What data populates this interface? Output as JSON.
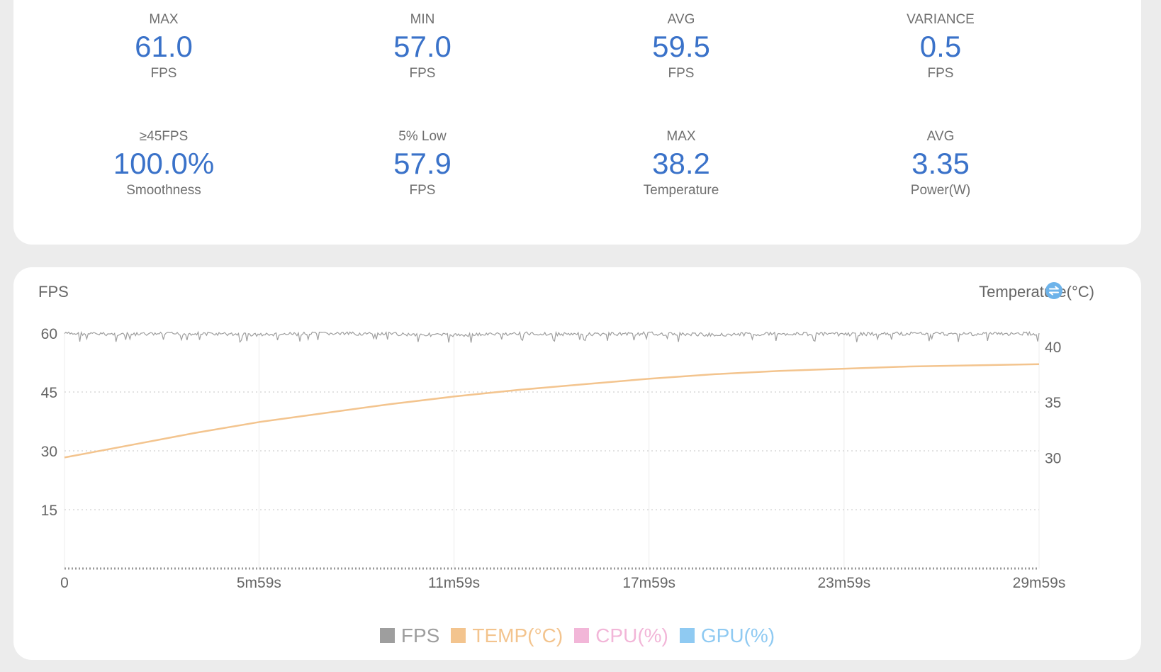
{
  "stats": [
    {
      "label": "MAX",
      "value": "61.0",
      "unit": "FPS"
    },
    {
      "label": "MIN",
      "value": "57.0",
      "unit": "FPS"
    },
    {
      "label": "AVG",
      "value": "59.5",
      "unit": "FPS"
    },
    {
      "label": "VARIANCE",
      "value": "0.5",
      "unit": "FPS"
    },
    {
      "label": "≥45FPS",
      "value": "100.0%",
      "unit": "Smoothness"
    },
    {
      "label": "5% Low",
      "value": "57.9",
      "unit": "FPS"
    },
    {
      "label": "MAX",
      "value": "38.2",
      "unit": "Temperature"
    },
    {
      "label": "AVG",
      "value": "3.35",
      "unit": "Power(W)"
    }
  ],
  "colors": {
    "accent": "#3a72c9",
    "fps": "#9e9e9e",
    "temp": "#f3c48e",
    "cpu": "#f2b6d8",
    "gpu": "#8fcaf2",
    "grid": "#d8d8d8",
    "icon": "#6db3ea"
  },
  "chart_data": {
    "type": "line",
    "ylabel": "FPS",
    "y2label": "Temperature(°C)",
    "x_tick_labels": [
      "0",
      "5m59s",
      "11m59s",
      "17m59s",
      "23m59s",
      "29m59s"
    ],
    "x_tick_seconds": [
      0,
      359,
      719,
      1079,
      1439,
      1799
    ],
    "xlim": [
      0,
      1799
    ],
    "ylim": [
      0,
      60
    ],
    "y_ticks": [
      60,
      45,
      30,
      15
    ],
    "y2lim": [
      20,
      41.2
    ],
    "y2_ticks": [
      40,
      35,
      30
    ],
    "grid": true,
    "legend_position": "bottom",
    "legend": [
      "FPS",
      "TEMP(°C)",
      "CPU(%)",
      "GPU(%)"
    ],
    "series": [
      {
        "name": "FPS",
        "x": [
          0,
          120,
          240,
          360,
          480,
          600,
          720,
          840,
          960,
          1080,
          1200,
          1320,
          1440,
          1560,
          1680,
          1799
        ],
        "values": [
          60,
          59.8,
          60,
          59.7,
          60,
          59.9,
          59.6,
          60,
          59.8,
          60,
          59.7,
          60,
          59.8,
          60,
          59.9,
          60
        ]
      },
      {
        "name": "TEMP(°C)",
        "x": [
          0,
          120,
          240,
          360,
          480,
          600,
          720,
          840,
          960,
          1080,
          1200,
          1320,
          1440,
          1560,
          1680,
          1799
        ],
        "values": [
          30.0,
          31.1,
          32.2,
          33.2,
          34.0,
          34.8,
          35.5,
          36.1,
          36.6,
          37.1,
          37.5,
          37.8,
          38.0,
          38.2,
          38.3,
          38.4
        ]
      }
    ]
  }
}
